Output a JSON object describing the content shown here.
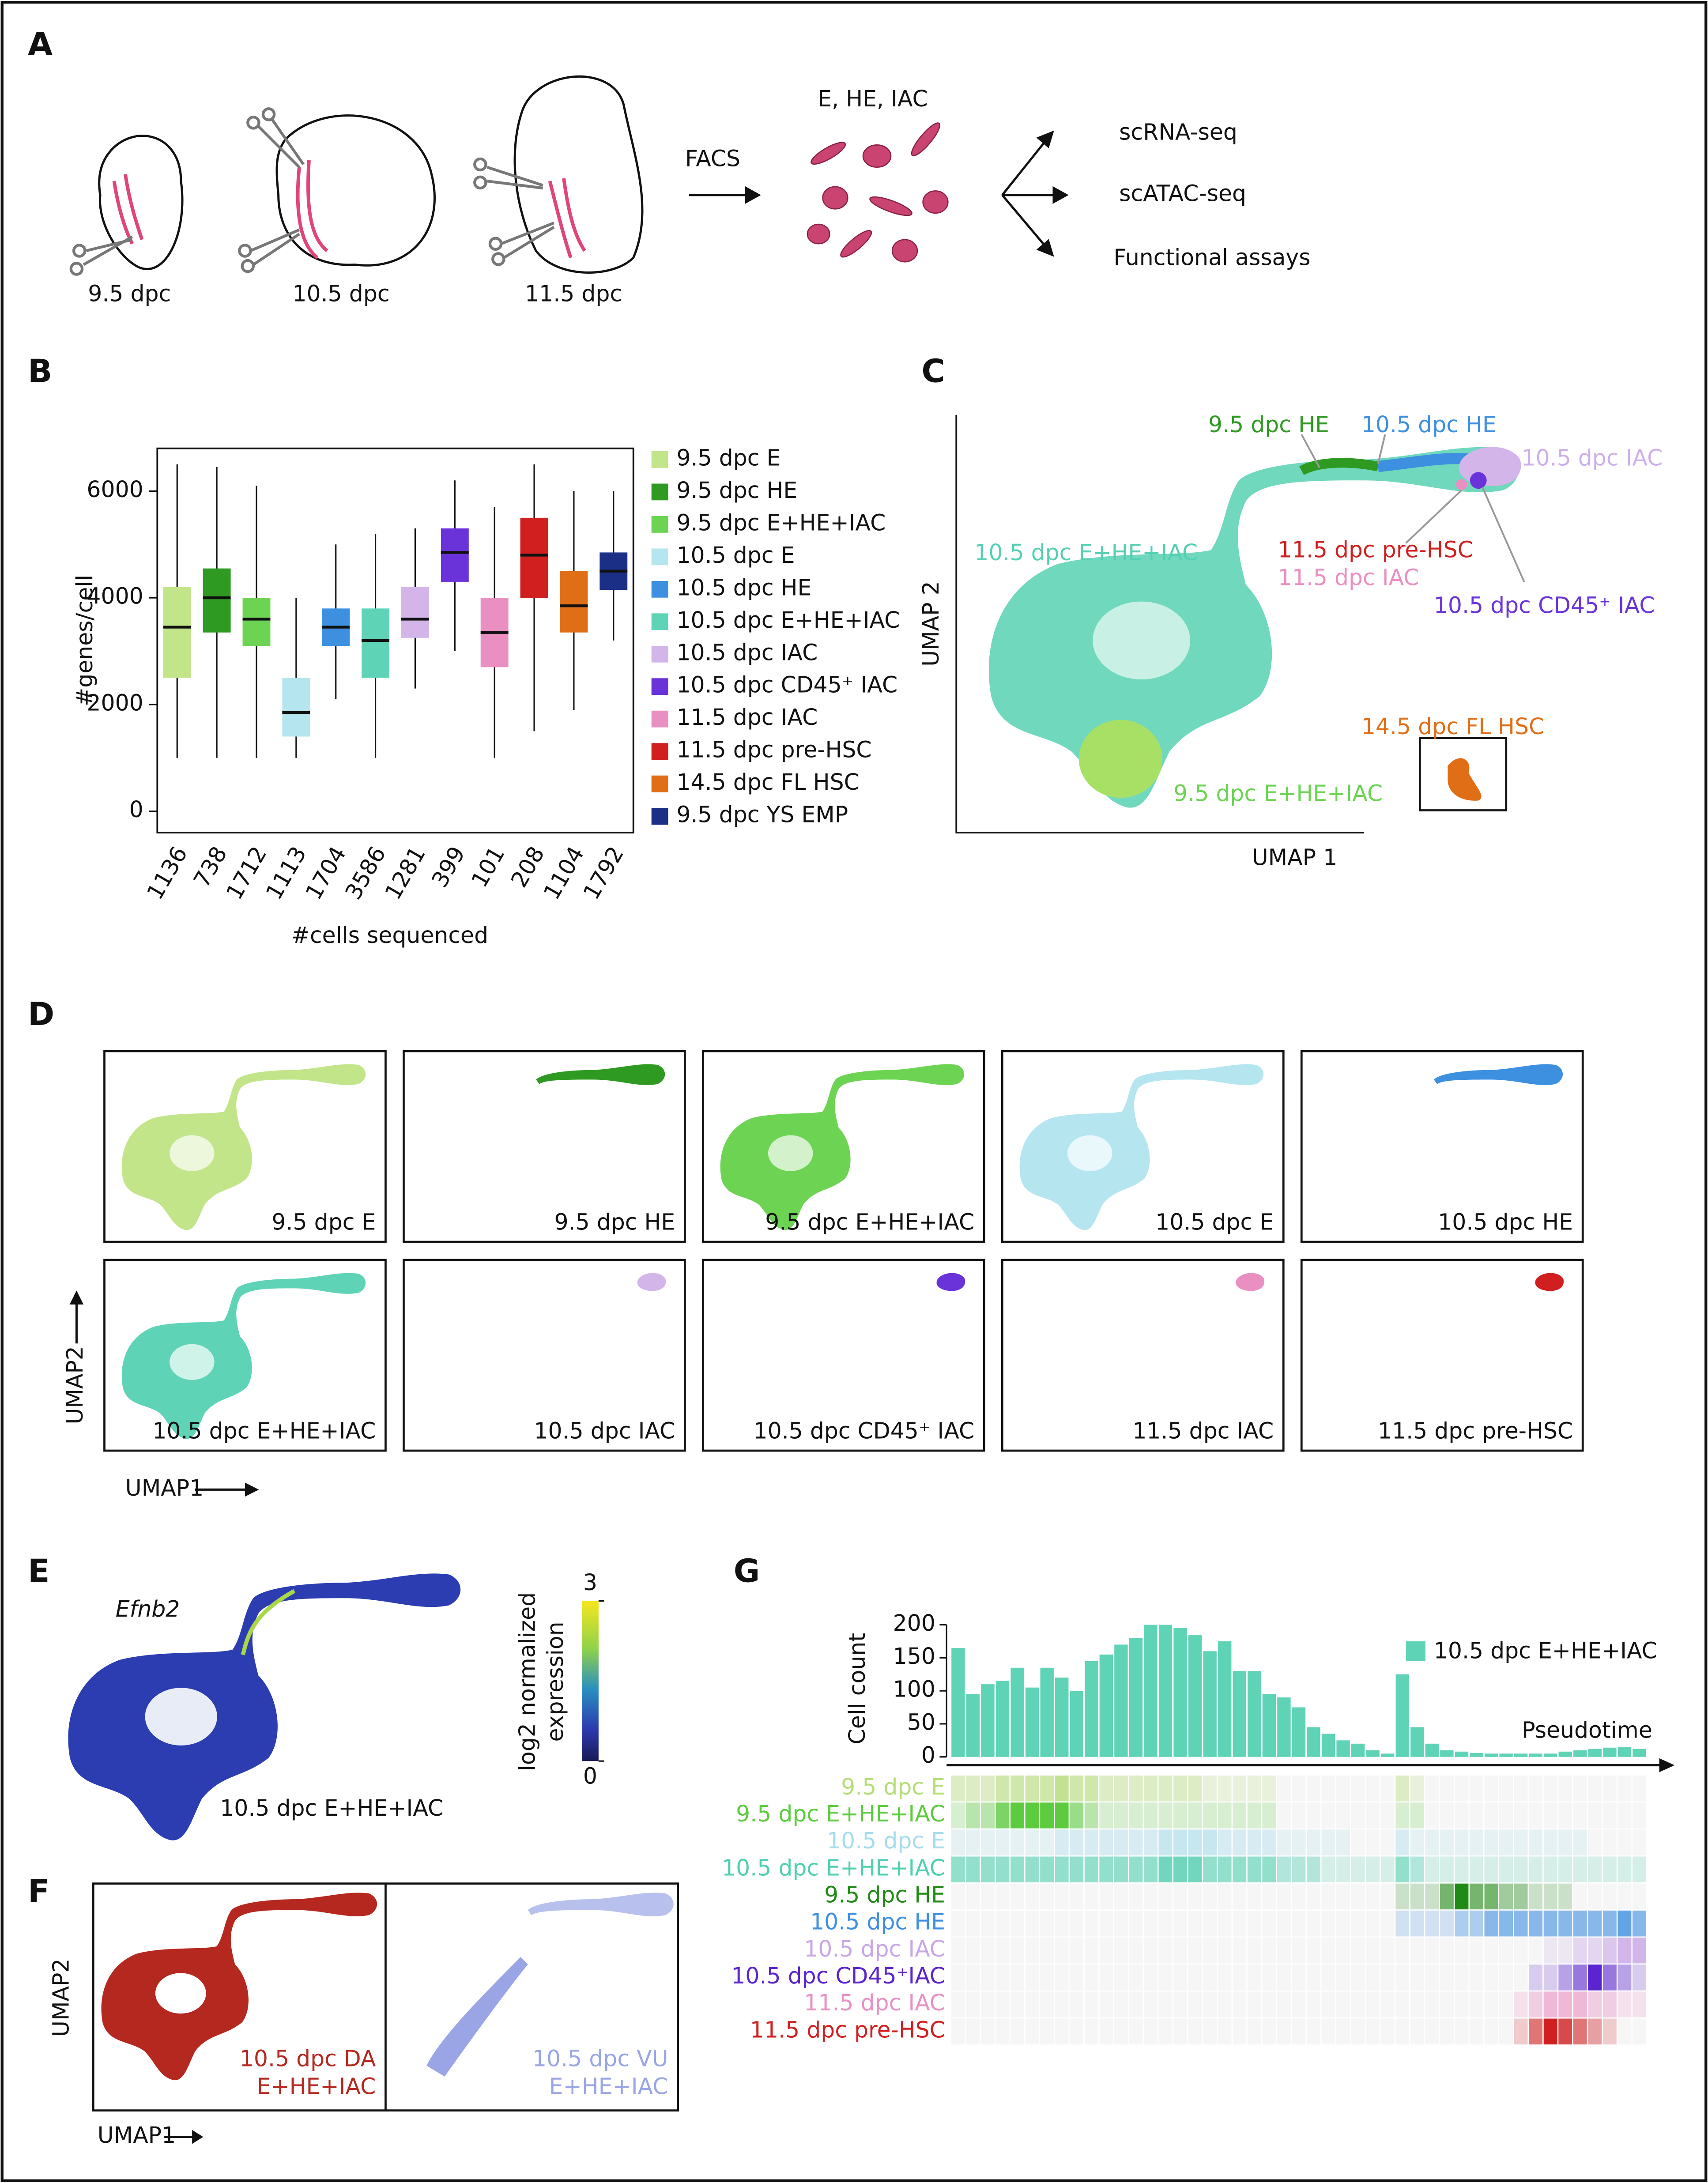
{
  "panel_labels": {
    "a": "A",
    "b": "B",
    "c": "C",
    "d": "D",
    "e": "E",
    "f": "F",
    "g": "G"
  },
  "panel_a": {
    "stages": [
      "9.5 dpc",
      "10.5 dpc",
      "11.5 dpc"
    ],
    "facs": "FACS",
    "cells": "E, HE, IAC",
    "outputs": [
      "scRNA-seq",
      "scATAC-seq",
      "Functional  assays"
    ]
  },
  "panel_c": {
    "x_label": "UMAP 1",
    "y_label": "UMAP 2",
    "labels": [
      {
        "text": "9.5 dpc HE",
        "color": "#2e9a20"
      },
      {
        "text": "10.5 dpc HE",
        "color": "#3d8fe0"
      },
      {
        "text": "10.5 dpc IAC",
        "color": "#cdb0e8"
      },
      {
        "text": "10.5 dpc E+HE+IAC",
        "color": "#55cfb2"
      },
      {
        "text": "11.5 dpc pre-HSC",
        "color": "#d11f1f"
      },
      {
        "text": "11.5 dpc IAC",
        "color": "#ea8fc2"
      },
      {
        "text": "10.5 dpc CD45⁺ IAC",
        "color": "#6a33d9"
      },
      {
        "text": "14.5 dpc FL HSC",
        "color": "#e06e17"
      },
      {
        "text": "9.5 dpc E+HE+IAC",
        "color": "#6cd452"
      }
    ]
  },
  "panel_d": {
    "x_label": "UMAP1",
    "y_label": "UMAP2",
    "panels": [
      {
        "label": "9.5 dpc E",
        "color": "#c2e58a"
      },
      {
        "label": "9.5 dpc HE",
        "color": "#2f9a22"
      },
      {
        "label": "9.5 dpc E+HE+IAC",
        "color": "#6cd452"
      },
      {
        "label": "10.5 dpc E",
        "color": "#b5e6ef"
      },
      {
        "label": "10.5 dpc HE",
        "color": "#3d8fe0"
      },
      {
        "label": "10.5 dpc E+HE+IAC",
        "color": "#5fd3b5"
      },
      {
        "label": "10.5 dpc IAC",
        "color": "#d3b5ea"
      },
      {
        "label": "10.5 dpc CD45⁺ IAC",
        "color": "#6a33d9"
      },
      {
        "label": "11.5 dpc IAC",
        "color": "#ea8fc2"
      },
      {
        "label": "11.5 dpc pre-HSC",
        "color": "#d11f1f"
      }
    ]
  },
  "panel_e": {
    "gene": "Efnb2",
    "label": "10.5 dpc E+HE+IAC",
    "colorbar_label": [
      "log2 normalized",
      "expression"
    ],
    "colorbar_ticks": [
      0,
      3
    ]
  },
  "panel_f": {
    "x_label": "UMAP1",
    "y_label": "UMAP2",
    "panels": [
      {
        "label": [
          "10.5 dpc DA",
          "E+HE+IAC"
        ],
        "color": "#b5281f"
      },
      {
        "label": [
          "10.5 dpc VU",
          "E+HE+IAC"
        ],
        "color": "#9aa5e6"
      }
    ]
  },
  "chart_data": [
    {
      "type": "box",
      "y_label": "#genes/cell",
      "x_label": "#cells sequenced",
      "categories": [
        "1136",
        "738",
        "1712",
        "1113",
        "1704",
        "3586",
        "1281",
        "399",
        "101",
        "208",
        "1104",
        "1792"
      ],
      "ylim": [
        -400,
        6800
      ],
      "yticks": [
        0,
        2000,
        4000,
        6000
      ],
      "boxes": [
        {
          "name": "9.5 dpc E",
          "color": "#c2e58a",
          "min": 1000,
          "q1": 2500,
          "median": 3450,
          "q3": 4200,
          "max": 6500
        },
        {
          "name": "9.5 dpc HE",
          "color": "#2f9a22",
          "min": 1000,
          "q1": 3350,
          "median": 4000,
          "q3": 4550,
          "max": 6450
        },
        {
          "name": "9.5 dpc E+HE+IAC",
          "color": "#6cd452",
          "min": 1000,
          "q1": 3100,
          "median": 3600,
          "q3": 4000,
          "max": 6100
        },
        {
          "name": "10.5 dpc E",
          "color": "#b5e6ef",
          "min": 1000,
          "q1": 1400,
          "median": 1850,
          "q3": 2500,
          "max": 4000
        },
        {
          "name": "10.5 dpc HE",
          "color": "#3d8fe0",
          "min": 2100,
          "q1": 3100,
          "median": 3450,
          "q3": 3800,
          "max": 5000
        },
        {
          "name": "10.5 dpc E+HE+IAC",
          "color": "#5fd3b5",
          "min": 1000,
          "q1": 2500,
          "median": 3200,
          "q3": 3800,
          "max": 5200
        },
        {
          "name": "10.5 dpc IAC",
          "color": "#d3b5ea",
          "min": 2300,
          "q1": 3250,
          "median": 3600,
          "q3": 4200,
          "max": 5300
        },
        {
          "name": "10.5 dpc CD45⁺ IAC",
          "color": "#6a33d9",
          "min": 3000,
          "q1": 4300,
          "median": 4850,
          "q3": 5300,
          "max": 6200
        },
        {
          "name": "11.5 dpc IAC",
          "color": "#ea8fc2",
          "min": 1000,
          "q1": 2700,
          "median": 3350,
          "q3": 4000,
          "max": 5700
        },
        {
          "name": "11.5 dpc pre-HSC",
          "color": "#d11f1f",
          "min": 1500,
          "q1": 4000,
          "median": 4800,
          "q3": 5500,
          "max": 6500
        },
        {
          "name": "14.5 dpc FL HSC",
          "color": "#e06e17",
          "min": 1900,
          "q1": 3350,
          "median": 3850,
          "q3": 4500,
          "max": 6000
        },
        {
          "name": "9.5 dpc YS EMP",
          "color": "#1c2f86",
          "min": 3200,
          "q1": 4150,
          "median": 4500,
          "q3": 4850,
          "max": 6000
        }
      ]
    },
    {
      "type": "bar",
      "y_label": "Cell count",
      "x_label": "Pseudotime",
      "legend": "10.5 dpc E+HE+IAC",
      "color": "#5fd3b5",
      "ylim": [
        0,
        215
      ],
      "yticks": [
        0,
        50,
        100,
        150,
        200
      ],
      "values": [
        165,
        95,
        110,
        115,
        135,
        105,
        135,
        120,
        100,
        145,
        155,
        170,
        180,
        200,
        200,
        195,
        185,
        160,
        175,
        130,
        130,
        95,
        90,
        75,
        45,
        35,
        25,
        20,
        10,
        5,
        125,
        45,
        20,
        10,
        8,
        6,
        5,
        5,
        5,
        5,
        5,
        8,
        10,
        12,
        14,
        15,
        12
      ]
    },
    {
      "type": "heatmap",
      "rows": [
        {
          "name": "9.5 dpc E",
          "color": "#b5dd78",
          "values": [
            2,
            2,
            2,
            3,
            3,
            3,
            3,
            4,
            3,
            3,
            2,
            2,
            2,
            2,
            2,
            2,
            2,
            1,
            1,
            1,
            1,
            1,
            0,
            0,
            0,
            0,
            0,
            0,
            0,
            0,
            2,
            1,
            0,
            0,
            0,
            0,
            0,
            0,
            0,
            0,
            0,
            0,
            0,
            0,
            0,
            0,
            0
          ]
        },
        {
          "name": "9.5 dpc E+HE+IAC",
          "color": "#5ccc3e",
          "values": [
            1,
            2,
            2,
            4,
            5,
            5,
            5,
            5,
            3,
            2,
            1,
            1,
            1,
            1,
            1,
            1,
            1,
            1,
            1,
            1,
            1,
            1,
            0,
            0,
            0,
            0,
            0,
            0,
            0,
            0,
            1,
            1,
            0,
            0,
            0,
            0,
            0,
            0,
            0,
            0,
            0,
            0,
            0,
            0,
            0,
            0,
            0
          ]
        },
        {
          "name": "10.5 dpc E",
          "color": "#a6dcec",
          "values": [
            1,
            1,
            1,
            1,
            1,
            1,
            1,
            2,
            2,
            2,
            2,
            2,
            2,
            2,
            3,
            3,
            3,
            3,
            2,
            2,
            2,
            2,
            1,
            1,
            1,
            1,
            1,
            0,
            0,
            0,
            2,
            1,
            1,
            1,
            1,
            1,
            1,
            1,
            1,
            1,
            1,
            1,
            1,
            0,
            0,
            0,
            0
          ]
        },
        {
          "name": "10.5 dpc E+HE+IAC",
          "color": "#4fcfb0",
          "values": [
            3,
            3,
            3,
            3,
            3,
            3,
            3,
            3,
            3,
            3,
            3,
            3,
            3,
            3,
            4,
            4,
            4,
            3,
            3,
            3,
            3,
            3,
            2,
            2,
            2,
            1,
            1,
            1,
            1,
            1,
            3,
            2,
            1,
            1,
            1,
            1,
            1,
            1,
            1,
            1,
            1,
            1,
            1,
            1,
            1,
            1,
            1
          ]
        },
        {
          "name": "9.5 dpc HE",
          "color": "#1f8a14",
          "values": [
            0,
            0,
            0,
            0,
            0,
            0,
            0,
            0,
            0,
            0,
            0,
            0,
            0,
            0,
            0,
            0,
            0,
            0,
            0,
            0,
            0,
            0,
            0,
            0,
            0,
            0,
            0,
            0,
            0,
            0,
            1,
            1,
            1,
            3,
            5,
            3,
            3,
            2,
            2,
            1,
            1,
            1,
            0,
            0,
            0,
            0,
            0
          ]
        },
        {
          "name": "10.5 dpc HE",
          "color": "#3d8fe0",
          "values": [
            0,
            0,
            0,
            0,
            0,
            0,
            0,
            0,
            0,
            0,
            0,
            0,
            0,
            0,
            0,
            0,
            0,
            0,
            0,
            0,
            0,
            0,
            0,
            0,
            0,
            0,
            0,
            0,
            0,
            0,
            1,
            1,
            1,
            1,
            2,
            2,
            3,
            3,
            3,
            3,
            3,
            3,
            3,
            3,
            3,
            4,
            3
          ]
        },
        {
          "name": "10.5 dpc IAC",
          "color": "#c9a6e6",
          "values": [
            0,
            0,
            0,
            0,
            0,
            0,
            0,
            0,
            0,
            0,
            0,
            0,
            0,
            0,
            0,
            0,
            0,
            0,
            0,
            0,
            0,
            0,
            0,
            0,
            0,
            0,
            0,
            0,
            0,
            0,
            0,
            0,
            0,
            0,
            0,
            0,
            0,
            0,
            0,
            0,
            1,
            1,
            2,
            2,
            3,
            4,
            4
          ]
        },
        {
          "name": "10.5 dpc CD45⁺IAC",
          "color": "#5a24d0",
          "values": [
            0,
            0,
            0,
            0,
            0,
            0,
            0,
            0,
            0,
            0,
            0,
            0,
            0,
            0,
            0,
            0,
            0,
            0,
            0,
            0,
            0,
            0,
            0,
            0,
            0,
            0,
            0,
            0,
            0,
            0,
            0,
            0,
            0,
            0,
            0,
            0,
            0,
            0,
            0,
            1,
            1,
            2,
            3,
            5,
            3,
            2,
            1
          ]
        },
        {
          "name": "11.5 dpc IAC",
          "color": "#ea8fc2",
          "values": [
            0,
            0,
            0,
            0,
            0,
            0,
            0,
            0,
            0,
            0,
            0,
            0,
            0,
            0,
            0,
            0,
            0,
            0,
            0,
            0,
            0,
            0,
            0,
            0,
            0,
            0,
            0,
            0,
            0,
            0,
            0,
            0,
            0,
            0,
            0,
            0,
            0,
            0,
            1,
            2,
            3,
            3,
            3,
            2,
            2,
            1,
            1
          ]
        },
        {
          "name": "11.5 dpc pre-HSC",
          "color": "#d11f1f",
          "values": [
            0,
            0,
            0,
            0,
            0,
            0,
            0,
            0,
            0,
            0,
            0,
            0,
            0,
            0,
            0,
            0,
            0,
            0,
            0,
            0,
            0,
            0,
            0,
            0,
            0,
            0,
            0,
            0,
            0,
            0,
            0,
            0,
            0,
            0,
            0,
            0,
            0,
            0,
            1,
            3,
            5,
            4,
            3,
            2,
            1,
            0,
            0
          ]
        }
      ]
    }
  ]
}
